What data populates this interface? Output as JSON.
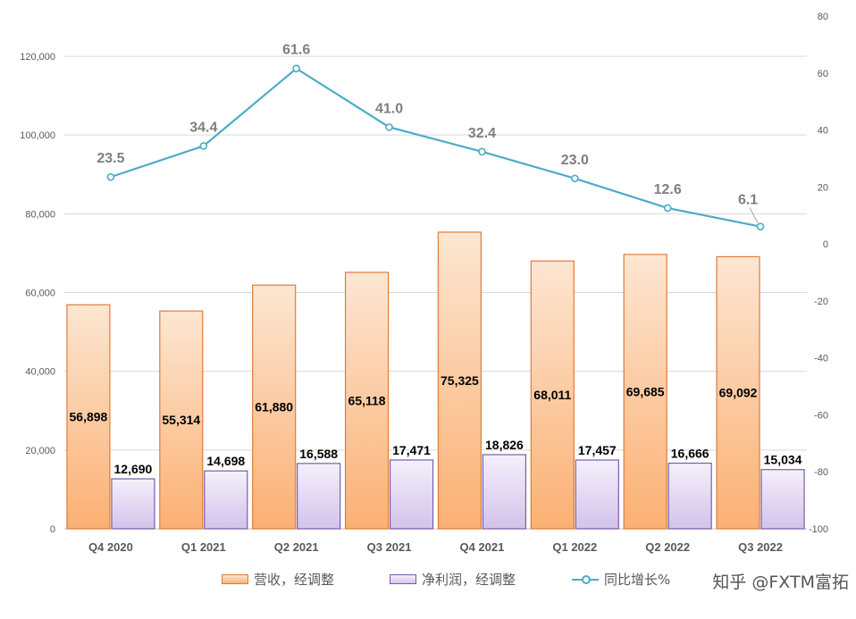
{
  "chart_data": {
    "type": "bar",
    "categories": [
      "Q4 2020",
      "Q1 2021",
      "Q2 2021",
      "Q3 2021",
      "Q4 2021",
      "Q1 2022",
      "Q2 2022",
      "Q3 2022"
    ],
    "series": [
      {
        "name": "营收，经调整",
        "type": "bar",
        "axis": "left",
        "values": [
          56898,
          55314,
          61880,
          65118,
          75325,
          68011,
          69685,
          69092
        ],
        "labels": [
          "56,898",
          "55,314",
          "61,880",
          "65,118",
          "75,325",
          "68,011",
          "69,685",
          "69,092"
        ],
        "color": "#f7a96b"
      },
      {
        "name": "净利润，经调整",
        "type": "bar",
        "axis": "left",
        "values": [
          12690,
          14698,
          16588,
          17471,
          18826,
          17457,
          16666,
          15034
        ],
        "labels": [
          "12,690",
          "14,698",
          "16,588",
          "17,471",
          "18,826",
          "17,457",
          "16,666",
          "15,034"
        ],
        "color": "#c9b8e6"
      },
      {
        "name": "同比增长%",
        "type": "line",
        "axis": "right",
        "values": [
          23.5,
          34.4,
          61.6,
          41.0,
          32.4,
          23.0,
          12.6,
          6.1
        ],
        "labels": [
          "23.5",
          "34.4",
          "61.6",
          "41.0",
          "32.4",
          "23.0",
          "12.6",
          "6.1"
        ],
        "color": "#4bacc6"
      }
    ],
    "y_left": {
      "min": 0,
      "max": 120000,
      "ticks": [
        "0",
        "20,000",
        "40,000",
        "60,000",
        "80,000",
        "100,000",
        "120,000"
      ]
    },
    "y_right": {
      "min": -100,
      "max": 80,
      "ticks": [
        "-100",
        "-80",
        "-60",
        "-40",
        "-20",
        "0",
        "20",
        "40",
        "60",
        "80"
      ]
    },
    "grid": true,
    "legend_position": "bottom"
  },
  "watermark": "知乎 @FXTM富拓"
}
